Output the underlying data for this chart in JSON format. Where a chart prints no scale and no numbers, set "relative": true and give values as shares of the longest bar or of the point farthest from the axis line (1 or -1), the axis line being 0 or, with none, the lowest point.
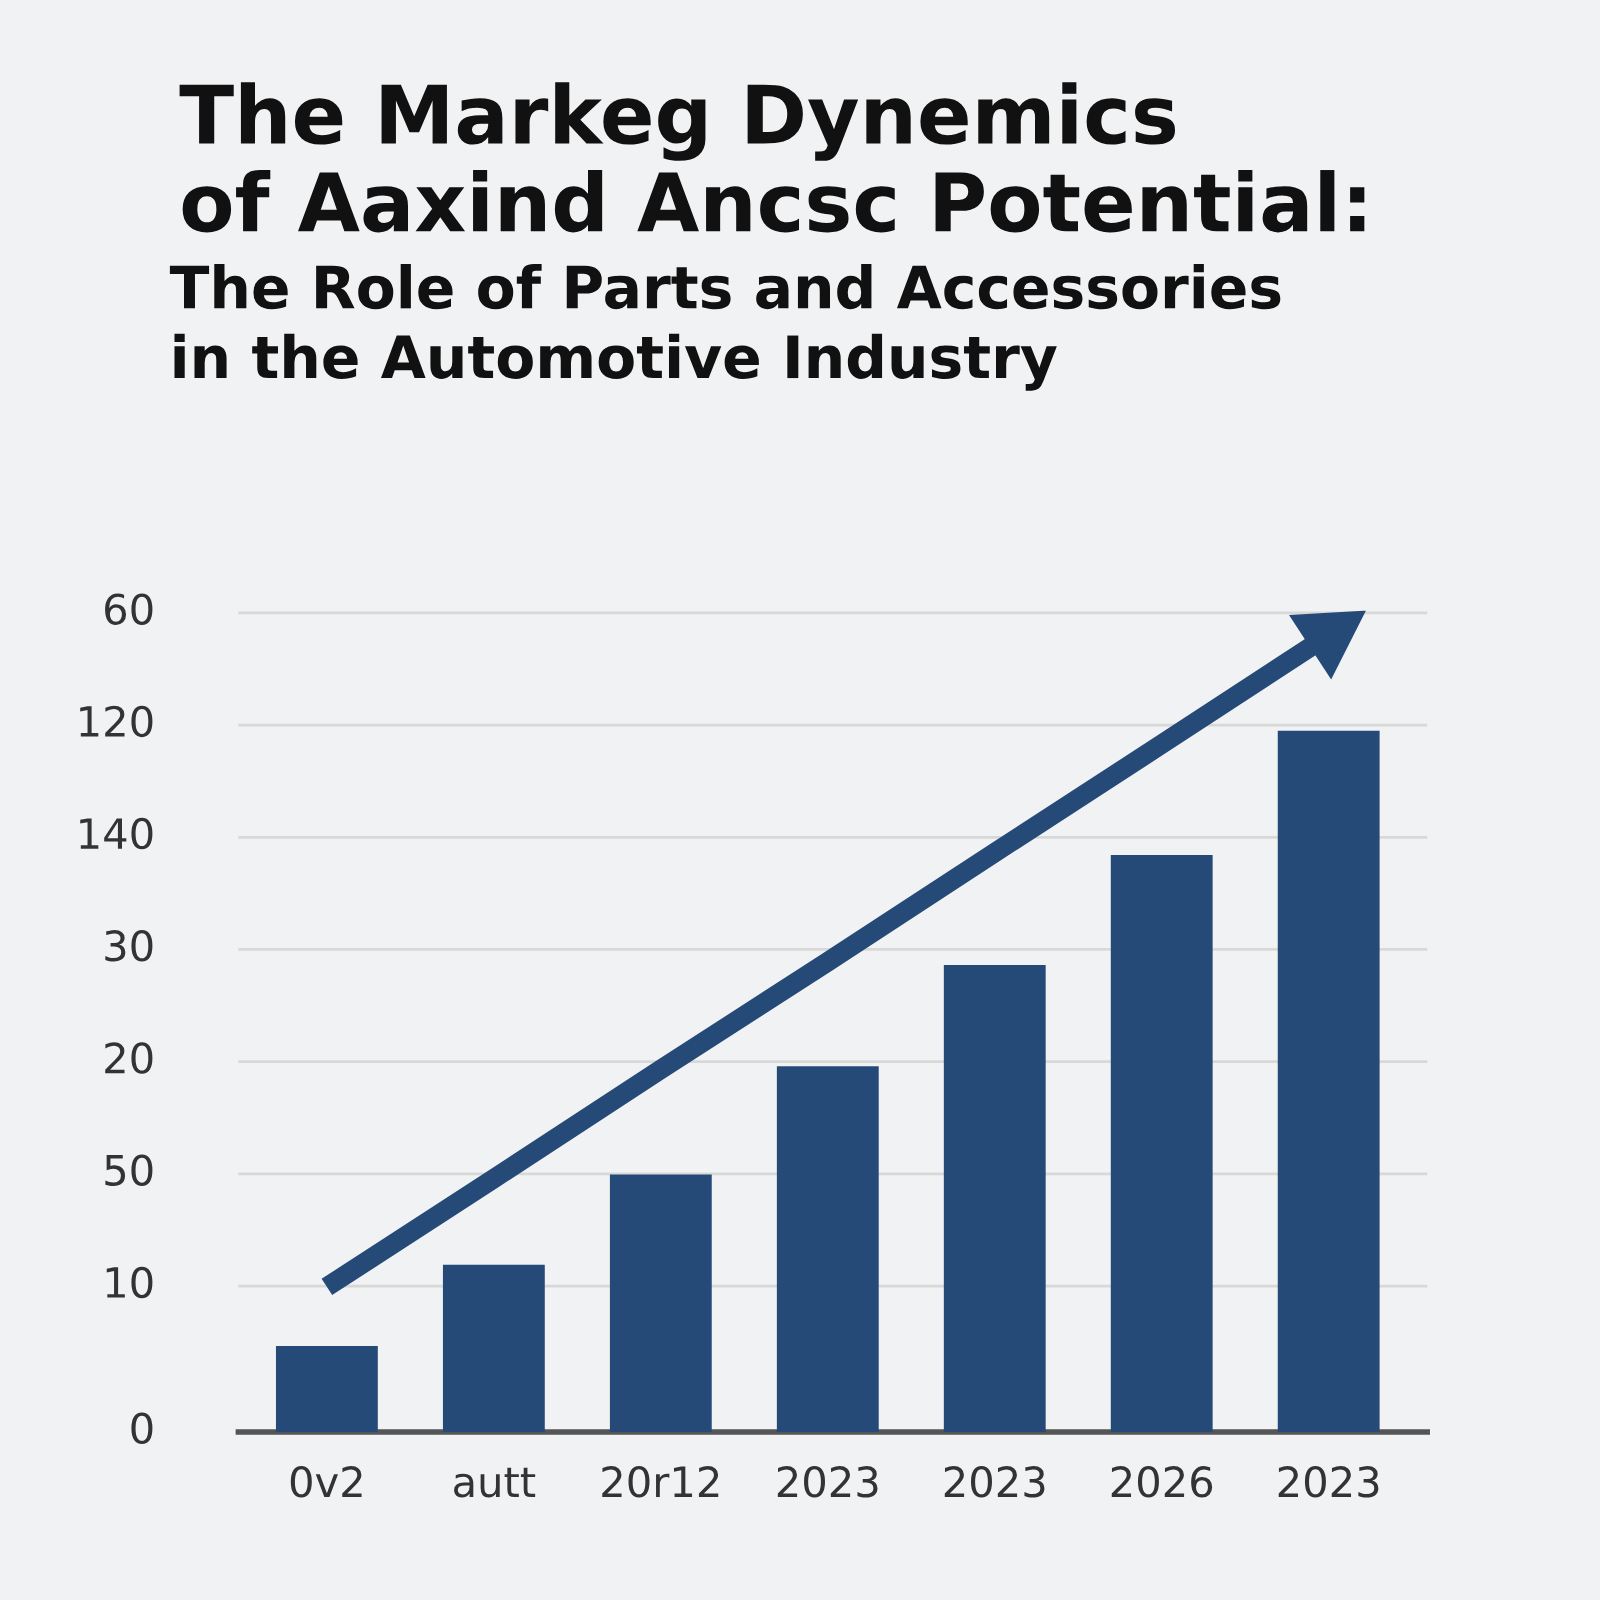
{
  "chart_data": {
    "type": "bar",
    "title": "The Markeg Dynemics\nof Aaxind Ancsc Potential:",
    "subtitle": "The Role of Parts and Accessories\nin the Automotive Industry",
    "categories": [
      "0v2",
      "autt",
      "20r12",
      "2023",
      "2023",
      "2026",
      "2023"
    ],
    "relative": true,
    "series": [
      {
        "color": "#264a78",
        "values": [
          0.108,
          0.21,
          0.323,
          0.459,
          0.586,
          0.724,
          0.88
        ]
      },
      {
        "type": "line",
        "color": "#264a78",
        "values": [
          0.182,
          0.318,
          0.455,
          0.59,
          0.727,
          0.863,
          1
        ]
      }
    ],
    "annotations": [
      "60",
      "120",
      "140",
      "30",
      "20",
      "50",
      "10",
      "0"
    ],
    "grid": "y"
  }
}
